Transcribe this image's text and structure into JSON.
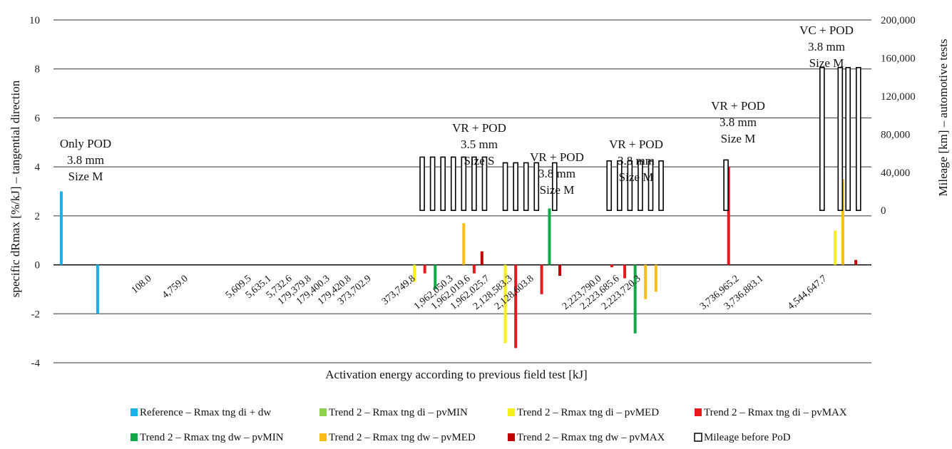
{
  "chart_data": {
    "type": "bar",
    "left_axis": {
      "label": "specific dRmax [%/kJ] – tangential direction",
      "range": [
        -4,
        10
      ],
      "ticks": [
        "-4",
        "-2",
        "0",
        "2",
        "4",
        "6",
        "8",
        "10"
      ]
    },
    "right_axis": {
      "label": "Mileage [km] – automotive tests",
      "range": [
        -160000,
        200000
      ],
      "ticks": [
        "0",
        "40,000",
        "80,000",
        "120,000",
        "160,000",
        "200,000"
      ]
    },
    "xlabel": "Activation energy according to previous field test [kJ]",
    "category_labels": [
      "108.0",
      "4,759.0",
      "5,609.5",
      "5,635.1",
      "5,732.6",
      "179,379.8",
      "179,400.3",
      "179,420.8",
      "373,702.9",
      "373,749.8",
      "1,962,050.3",
      "1,962,019.6",
      "1,962,025.7",
      "2,128,583.3",
      "2,128,603.8",
      "2,223,790.0",
      "2,223,685.6",
      "2,223,720.3",
      "3,736,965.2",
      "3,736,883.1",
      "4,544,647.7"
    ],
    "group_labels": [
      {
        "lines": [
          "Only POD",
          "3.8 mm",
          "Size M"
        ]
      },
      {
        "lines": [
          "VR + POD",
          "3.5 mm",
          "Size S"
        ]
      },
      {
        "lines": [
          "VR + POD",
          "3.8 mm",
          "Size M"
        ]
      },
      {
        "lines": [
          "VR + POD",
          "3.8 mm",
          "Size M"
        ]
      },
      {
        "lines": [
          "VR + POD",
          "3.8 mm",
          "Size M"
        ]
      },
      {
        "lines": [
          "VC + POD",
          "3.8 mm",
          "Size M"
        ]
      }
    ],
    "series": [
      {
        "name": "Reference – Rmax tng di + dw",
        "color": "#1ab0ea",
        "points": [
          {
            "x": 0.3,
            "y": 3.0
          },
          {
            "x": 1.7,
            "y": -2.0
          }
        ]
      },
      {
        "name": "Trend 2 – Rmax tng di – pvMIN",
        "color": "#8dd14f",
        "points": []
      },
      {
        "name": "Trend 2 – Rmax tng di – pvMED",
        "color": "#f5ef1a",
        "points": [
          {
            "x": 13.9,
            "y": -0.7
          },
          {
            "x": 17.4,
            "y": -3.2
          },
          {
            "x": 30.1,
            "y": 1.4
          }
        ]
      },
      {
        "name": "Trend 2 – Rmax tng di – pvMAX",
        "color": "#e8191c",
        "points": [
          {
            "x": 14.3,
            "y": -0.35
          },
          {
            "x": 16.2,
            "y": -0.35
          },
          {
            "x": 17.8,
            "y": -3.4
          },
          {
            "x": 18.8,
            "y": -1.2
          },
          {
            "x": 21.5,
            "y": -0.1
          },
          {
            "x": 22.0,
            "y": -0.55
          },
          {
            "x": 26.0,
            "y": 4.0
          }
        ]
      },
      {
        "name": "Trend 2 – Rmax tng dw – pvMIN",
        "color": "#12a84a",
        "points": [
          {
            "x": 14.7,
            "y": -1.0
          },
          {
            "x": 19.1,
            "y": 2.3
          },
          {
            "x": 22.4,
            "y": -2.8
          }
        ]
      },
      {
        "name": "Trend 2 – Rmax tng dw – pvMED",
        "color": "#f7bd1a",
        "points": [
          {
            "x": 15.8,
            "y": 1.7
          },
          {
            "x": 22.8,
            "y": -1.4
          },
          {
            "x": 23.2,
            "y": -1.1
          },
          {
            "x": 30.4,
            "y": 3.5
          }
        ]
      },
      {
        "name": "Trend 2 – Rmax tng dw – pvMAX",
        "color": "#c00000",
        "points": [
          {
            "x": 16.5,
            "y": 0.55
          },
          {
            "x": 19.5,
            "y": -0.45
          },
          {
            "x": 30.9,
            "y": 0.2
          }
        ]
      },
      {
        "name": "Mileage before PoD",
        "color": "#000000",
        "hollow": true,
        "points": [
          {
            "x": 14.2,
            "y": 56000
          },
          {
            "x": 14.6,
            "y": 56000
          },
          {
            "x": 15.0,
            "y": 56000
          },
          {
            "x": 15.4,
            "y": 56000
          },
          {
            "x": 15.8,
            "y": 56000
          },
          {
            "x": 16.2,
            "y": 56000
          },
          {
            "x": 16.6,
            "y": 56000
          },
          {
            "x": 17.4,
            "y": 50000
          },
          {
            "x": 17.8,
            "y": 50000
          },
          {
            "x": 18.2,
            "y": 50000
          },
          {
            "x": 18.6,
            "y": 50000
          },
          {
            "x": 19.3,
            "y": 50000
          },
          {
            "x": 21.4,
            "y": 52000
          },
          {
            "x": 21.8,
            "y": 52000
          },
          {
            "x": 22.2,
            "y": 52000
          },
          {
            "x": 22.6,
            "y": 52000
          },
          {
            "x": 23.0,
            "y": 52000
          },
          {
            "x": 23.4,
            "y": 52000
          },
          {
            "x": 25.9,
            "y": 53000
          },
          {
            "x": 29.6,
            "y": 150000
          },
          {
            "x": 30.3,
            "y": 150000
          },
          {
            "x": 30.6,
            "y": 150000
          },
          {
            "x": 31.0,
            "y": 150000
          }
        ]
      }
    ]
  }
}
